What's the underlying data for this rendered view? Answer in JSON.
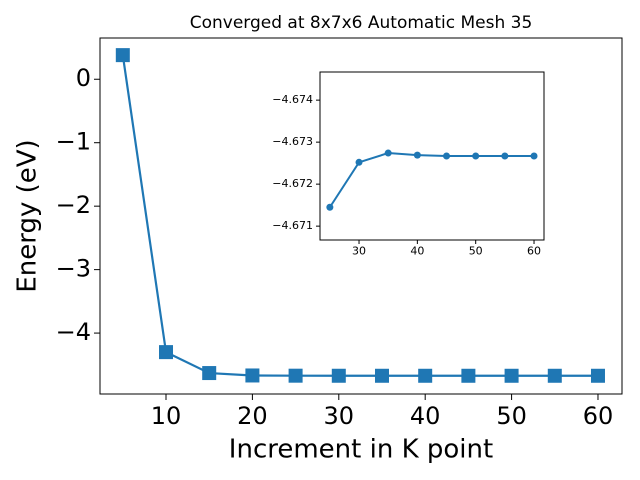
{
  "chart_data": [
    {
      "type": "line",
      "title": "Converged at 8x7x6 Automatic Mesh 35",
      "x_label": "Increment in K point",
      "y_label": "Energy (eV)",
      "x": [
        5,
        10,
        15,
        20,
        25,
        30,
        35,
        40,
        45,
        50,
        55,
        60
      ],
      "series": [
        {
          "color": "#1f77b4",
          "marker": "square",
          "values": [
            0.38,
            -4.3,
            -4.63,
            -4.668,
            -4.6715,
            -4.6725,
            -4.6727,
            -4.6727,
            -4.6727,
            -4.6727,
            -4.6727,
            -4.6727
          ]
        }
      ],
      "xlim": [
        2.36,
        62.78
      ],
      "ylim": [
        -4.96,
        0.65
      ],
      "xticks": [
        10,
        20,
        30,
        40,
        50,
        60
      ],
      "yticks": [
        0,
        {
          "value": -1,
          "label": "−1"
        },
        {
          "value": -2,
          "label": "−2"
        },
        {
          "value": -3,
          "label": "−3"
        },
        {
          "value": -4,
          "label": "−4"
        }
      ]
    },
    {
      "type": "line",
      "x": [
        25,
        30,
        35,
        40,
        45,
        50,
        55,
        60
      ],
      "series": [
        {
          "color": "#1f77b4",
          "marker": "circle",
          "values": [
            -4.67145,
            -4.67252,
            -4.67274,
            -4.67269,
            -4.67267,
            -4.67267,
            -4.67267,
            -4.67267
          ]
        }
      ],
      "xlim": [
        23.31,
        61.71
      ],
      "ylim": [
        -4.67067,
        -4.67467
      ],
      "xticks": [
        30,
        40,
        50,
        60
      ],
      "yticks": [
        {
          "value": -4.674,
          "label": "−4.674"
        },
        {
          "value": -4.673,
          "label": "−4.673"
        },
        {
          "value": -4.672,
          "label": "−4.672"
        },
        {
          "value": -4.671,
          "label": "−4.671"
        }
      ]
    }
  ]
}
